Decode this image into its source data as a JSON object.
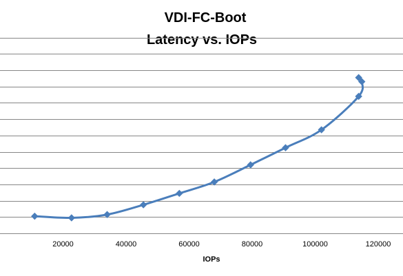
{
  "chart_data": {
    "type": "scatter",
    "title_lines": [
      "VDI-FC-Boot",
      "Latency vs. IOPs"
    ],
    "xlabel": "IOPs",
    "ylabel": "",
    "xlim": [
      0,
      125000
    ],
    "ylim": [
      0,
      13
    ],
    "x_ticks": [
      20000,
      40000,
      60000,
      80000,
      100000,
      120000
    ],
    "y_grid": [
      0,
      1,
      2,
      3,
      4,
      5,
      6,
      7,
      8,
      9,
      10,
      11,
      12
    ],
    "y_tick_labels_shown": false,
    "grid": true,
    "legend": "none",
    "smooth": true,
    "color": "#4a7ebb",
    "series": [
      {
        "x": [
          11000,
          22700,
          34000,
          45500,
          56900,
          68000,
          79500,
          90600,
          102000,
          113800,
          114800,
          113800
        ],
        "y": [
          1.05,
          0.95,
          1.15,
          1.75,
          2.45,
          3.15,
          4.2,
          5.25,
          6.35,
          8.4,
          9.3,
          9.55
        ]
      }
    ]
  }
}
